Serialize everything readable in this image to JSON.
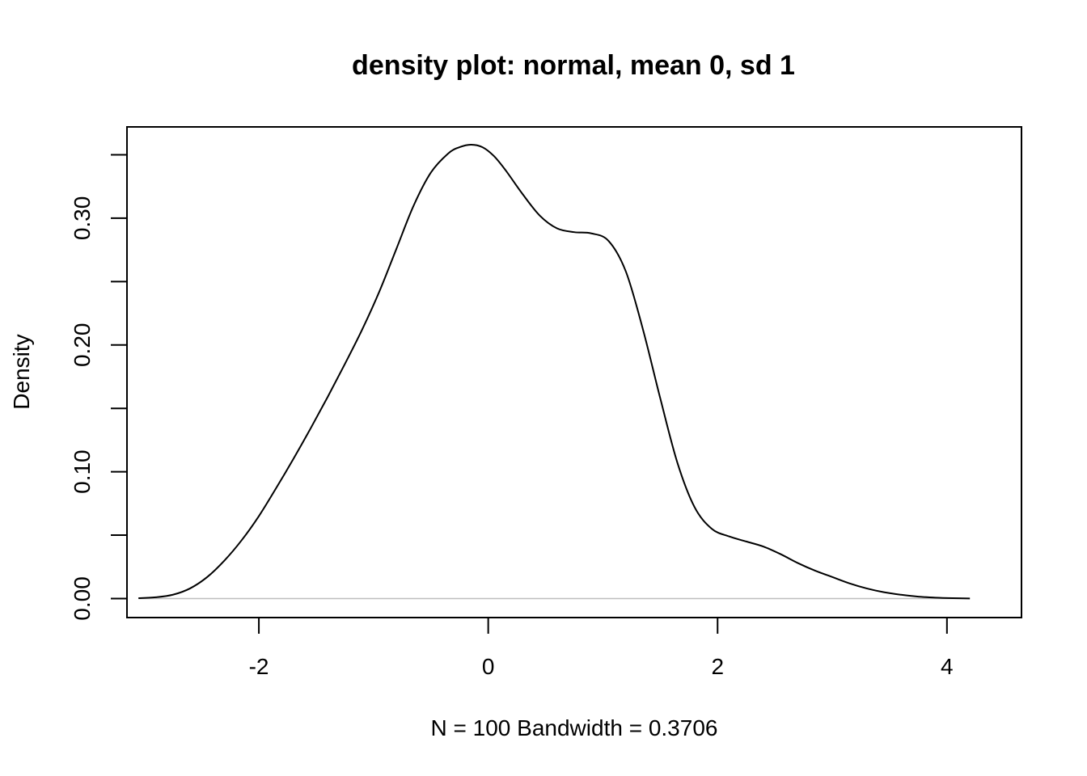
{
  "chart_data": {
    "type": "line",
    "title": "density plot: normal, mean 0, sd 1",
    "xlabel": "N = 100   Bandwidth = 0.3706",
    "ylabel": "Density",
    "xlim": [
      -3.15,
      4.65
    ],
    "ylim": [
      -0.015,
      0.372
    ],
    "x_ticks": [
      -2,
      0,
      2,
      4
    ],
    "x_tick_labels": [
      "-2",
      "0",
      "2",
      "4"
    ],
    "y_ticks": [
      0.0,
      0.05,
      0.1,
      0.15,
      0.2,
      0.25,
      0.3,
      0.35
    ],
    "y_tick_labels": [
      {
        "value": 0.0,
        "label": "0.00"
      },
      {
        "value": 0.1,
        "label": "0.10"
      },
      {
        "value": 0.2,
        "label": "0.20"
      },
      {
        "value": 0.3,
        "label": "0.30"
      }
    ],
    "baseline": 0,
    "grid": false,
    "legend": "none",
    "colors": {
      "line": "#000000",
      "baseline": "#bebebe",
      "frame": "#000000"
    },
    "series": [
      {
        "x": [
          -3.05,
          -2.9,
          -2.75,
          -2.6,
          -2.45,
          -2.3,
          -2.15,
          -2.0,
          -1.85,
          -1.7,
          -1.55,
          -1.4,
          -1.25,
          -1.1,
          -0.95,
          -0.8,
          -0.65,
          -0.5,
          -0.35,
          -0.25,
          -0.15,
          -0.05,
          0.05,
          0.15,
          0.3,
          0.45,
          0.6,
          0.75,
          0.9,
          1.05,
          1.2,
          1.35,
          1.5,
          1.65,
          1.8,
          1.95,
          2.1,
          2.25,
          2.4,
          2.55,
          2.7,
          2.85,
          3.0,
          3.15,
          3.3,
          3.45,
          3.6,
          3.75,
          3.9,
          4.05,
          4.2
        ],
        "y": [
          0.0003,
          0.001,
          0.003,
          0.008,
          0.017,
          0.03,
          0.046,
          0.065,
          0.087,
          0.11,
          0.134,
          0.159,
          0.185,
          0.212,
          0.242,
          0.276,
          0.31,
          0.336,
          0.351,
          0.356,
          0.358,
          0.356,
          0.349,
          0.338,
          0.319,
          0.302,
          0.292,
          0.289,
          0.288,
          0.282,
          0.258,
          0.212,
          0.158,
          0.107,
          0.072,
          0.055,
          0.049,
          0.045,
          0.041,
          0.035,
          0.028,
          0.022,
          0.017,
          0.012,
          0.008,
          0.005,
          0.003,
          0.0015,
          0.0007,
          0.0003,
          0.0001
        ]
      }
    ]
  }
}
